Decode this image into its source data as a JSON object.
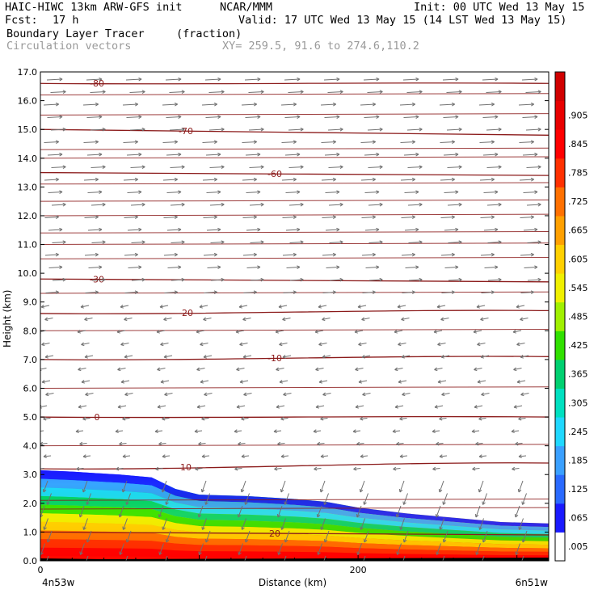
{
  "header": {
    "model": "HAIC-HIWC 13km ARW-GFS init",
    "org": "NCAR/MMM",
    "init": "Init: 00 UTC Wed 13 May 15",
    "fcst_label": "Fcst:",
    "fcst_value": "17 h",
    "valid": "Valid: 17 UTC Wed 13 May 15 (14 LST Wed 13 May 15)",
    "field": "Boundary Layer Tracer",
    "units": "(fraction)",
    "overlay": "Circulation vectors",
    "xy": "XY= 259.5, 91.6 to 274.6,110.2"
  },
  "chart_data": {
    "type": "heatmap",
    "title": "Boundary Layer Tracer",
    "ylabel": "Height (km)",
    "xlabel": "Distance (km)",
    "x_range": [
      0,
      320
    ],
    "ylim": [
      0,
      17
    ],
    "y_ticks": [
      "0.0",
      "1.0",
      "2.0",
      "3.0",
      "4.0",
      "5.0",
      "6.0",
      "7.0",
      "8.0",
      "9.0",
      "10.0",
      "11.0",
      "12.0",
      "13.0",
      "14.0",
      "15.0",
      "16.0",
      "17.0"
    ],
    "x_ticks": [
      {
        "value": 0,
        "label": "0"
      },
      {
        "value": 200,
        "label": "200"
      }
    ],
    "x_end_labels": {
      "left": "4n53w",
      "right": "6n51w"
    },
    "colorbar_labels": [
      ".005",
      ".065",
      ".125",
      ".185",
      ".245",
      ".305",
      ".365",
      ".425",
      ".485",
      ".545",
      ".605",
      ".665",
      ".725",
      ".785",
      ".845",
      ".905",
      ""
    ],
    "colorbar_colors": [
      "#ffffff",
      "#1a1aff",
      "#2a6aff",
      "#3aa0ff",
      "#20d8ff",
      "#00e0c0",
      "#00d070",
      "#30e000",
      "#a0f000",
      "#f0f000",
      "#ffd000",
      "#ffa000",
      "#ff7000",
      "#ff3000",
      "#ff0000",
      "#e80000",
      "#d00000"
    ],
    "tracer_top_km": [
      [
        0,
        3.15
      ],
      [
        20,
        3.1
      ],
      [
        35,
        3.05
      ],
      [
        50,
        3.0
      ],
      [
        70,
        2.9
      ],
      [
        85,
        2.5
      ],
      [
        100,
        2.3
      ],
      [
        130,
        2.25
      ],
      [
        160,
        2.15
      ],
      [
        180,
        2.05
      ],
      [
        200,
        1.85
      ],
      [
        230,
        1.65
      ],
      [
        260,
        1.5
      ],
      [
        290,
        1.35
      ],
      [
        320,
        1.3
      ]
    ],
    "temperature_contours": [
      {
        "label": "-80",
        "y_left": 16.6,
        "y_right": 16.6
      },
      {
        "label": "-70",
        "y_left": 15.0,
        "y_right": 14.8
      },
      {
        "label": "-60",
        "y_left": 13.5,
        "y_right": 13.4
      },
      {
        "label": "-30",
        "y_left": 9.8,
        "y_right": 9.7
      },
      {
        "label": "-20",
        "y_left": 8.6,
        "y_right": 8.7
      },
      {
        "label": "-10",
        "y_left": 7.0,
        "y_right": 7.1
      },
      {
        "label": "0",
        "y_left": 5.0,
        "y_right": 5.0
      },
      {
        "label": "10",
        "y_left": 3.2,
        "y_right": 3.4
      },
      {
        "label": "20",
        "y_left": 1.0,
        "y_right": 0.9
      }
    ],
    "wind_upper": "westerly",
    "wind_lower": "easterly"
  }
}
